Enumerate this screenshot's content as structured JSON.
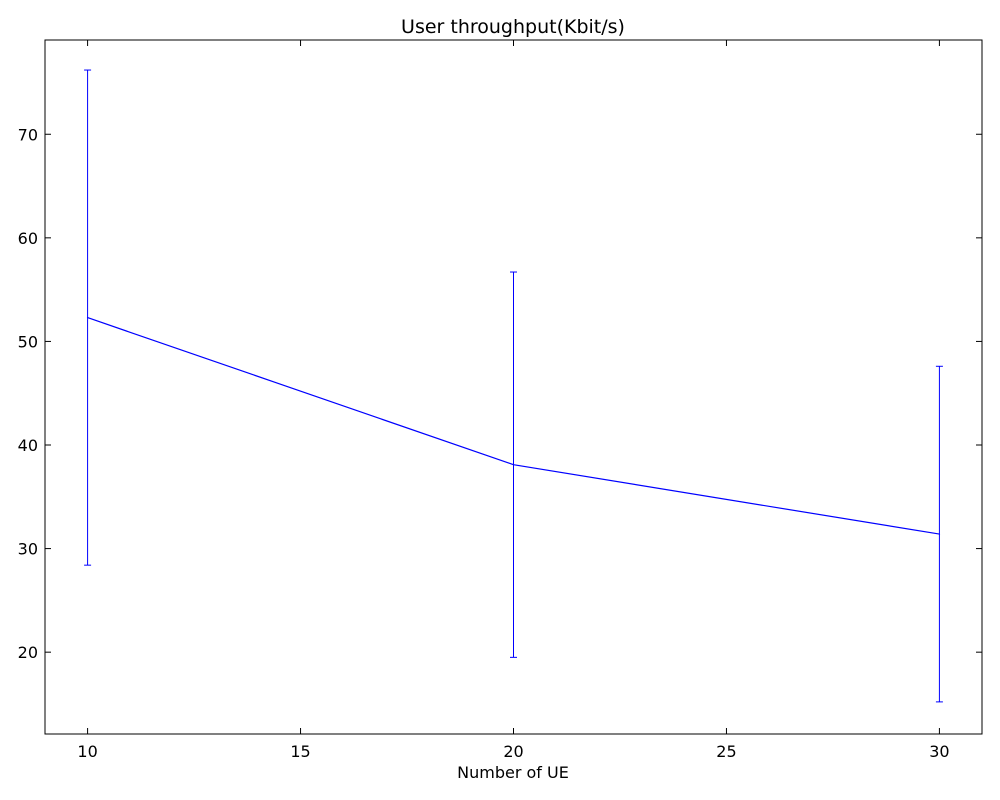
{
  "chart_data": {
    "type": "line",
    "title": "User throughput(Kbit/s)",
    "xlabel": "Number of UE",
    "ylabel": "",
    "xlim": [
      9,
      31
    ],
    "ylim": [
      12.1,
      79.1
    ],
    "xticks": [
      10,
      15,
      20,
      25,
      30
    ],
    "yticks": [
      20,
      30,
      40,
      50,
      60,
      70
    ],
    "grid": false,
    "series": [
      {
        "x": [
          10,
          20,
          30
        ],
        "y": [
          52.3,
          38.1,
          31.4
        ],
        "err_low": [
          28.4,
          19.5,
          15.2
        ],
        "err_high": [
          76.2,
          56.7,
          47.6
        ],
        "color": "#0000ff"
      }
    ]
  }
}
